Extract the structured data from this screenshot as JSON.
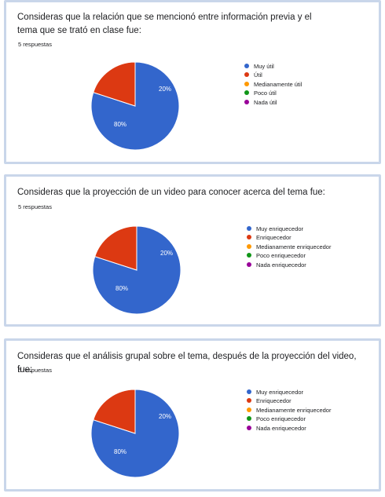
{
  "colors": [
    "#3366cc",
    "#dc3912",
    "#ff9900",
    "#109618",
    "#990099"
  ],
  "cards": [
    {
      "title": "Consideras que la relación que se mencionó entre información previa y el tema que se trató en clase fue:",
      "responses": "5 respuestas",
      "legend": [
        "Muy útil",
        "Útil",
        "Medianamente útil",
        "Poco útil",
        "Nada útil"
      ],
      "slice_labels": [
        "80%",
        "20%"
      ]
    },
    {
      "title": "Consideras que la proyección de un video para conocer acerca del tema fue:",
      "responses": "5 respuestas",
      "legend": [
        "Muy enriquecedor",
        "Enriquecedor",
        "Medianamente enriquecedor",
        "Poco enriquecedor",
        "Nada enriquecedor"
      ],
      "slice_labels": [
        "80%",
        "20%"
      ]
    },
    {
      "title": "Consideras que el análisis grupal sobre el tema, después de la proyección del video, fue:",
      "responses": "5 respuestas",
      "legend": [
        "Muy enriquecedor",
        "Enriquecedor",
        "Medianamente enriquecedor",
        "Poco enriquecedor",
        "Nada enriquecedor"
      ],
      "slice_labels": [
        "80%",
        "20%"
      ]
    }
  ],
  "chart_data": [
    {
      "type": "pie",
      "title": "Consideras que la relación que se mencionó entre información previa y el tema que se trató en clase fue:",
      "categories": [
        "Muy útil",
        "Útil",
        "Medianamente útil",
        "Poco útil",
        "Nada útil"
      ],
      "values": [
        80,
        20,
        0,
        0,
        0
      ],
      "colors": [
        "#3366cc",
        "#dc3912",
        "#ff9900",
        "#109618",
        "#990099"
      ],
      "legend_position": "right"
    },
    {
      "type": "pie",
      "title": "Consideras que la proyección de un video para conocer acerca del tema fue:",
      "categories": [
        "Muy enriquecedor",
        "Enriquecedor",
        "Medianamente enriquecedor",
        "Poco enriquecedor",
        "Nada enriquecedor"
      ],
      "values": [
        80,
        20,
        0,
        0,
        0
      ],
      "colors": [
        "#3366cc",
        "#dc3912",
        "#ff9900",
        "#109618",
        "#990099"
      ],
      "legend_position": "right"
    },
    {
      "type": "pie",
      "title": "Consideras que el análisis grupal sobre el tema, después de la proyección del video, fue:",
      "categories": [
        "Muy enriquecedor",
        "Enriquecedor",
        "Medianamente enriquecedor",
        "Poco enriquecedor",
        "Nada enriquecedor"
      ],
      "values": [
        80,
        20,
        0,
        0,
        0
      ],
      "colors": [
        "#3366cc",
        "#dc3912",
        "#ff9900",
        "#109618",
        "#990099"
      ],
      "legend_position": "right"
    }
  ]
}
